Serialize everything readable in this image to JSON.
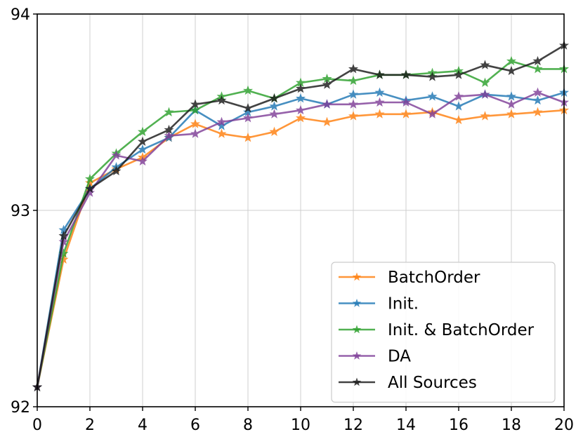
{
  "chart_data": {
    "type": "line",
    "title": "",
    "xlabel": "",
    "ylabel": "",
    "xlim": [
      0,
      20
    ],
    "ylim": [
      92,
      94
    ],
    "xticks": [
      "0",
      "2",
      "4",
      "6",
      "8",
      "10",
      "12",
      "14",
      "16",
      "18",
      "20"
    ],
    "yticks": [
      "92",
      "93",
      "94"
    ],
    "grid": true,
    "legend_position": "lower-right",
    "x": [
      0,
      1,
      2,
      3,
      4,
      5,
      6,
      7,
      8,
      9,
      10,
      11,
      12,
      13,
      14,
      15,
      16,
      17,
      18,
      19,
      20
    ],
    "series": [
      {
        "name": "BatchOrder",
        "color": "#ff7f0e",
        "marker": "star",
        "values": [
          92.1,
          92.75,
          93.14,
          93.21,
          93.27,
          93.37,
          93.44,
          93.39,
          93.37,
          93.4,
          93.47,
          93.45,
          93.48,
          93.49,
          93.49,
          93.5,
          93.46,
          93.48,
          93.49,
          93.5,
          93.51
        ]
      },
      {
        "name": "Init.",
        "color": "#1f77b4",
        "marker": "star",
        "values": [
          92.1,
          92.9,
          93.11,
          93.22,
          93.31,
          93.37,
          93.51,
          93.43,
          93.5,
          93.53,
          93.57,
          93.54,
          93.59,
          93.6,
          93.56,
          93.58,
          93.53,
          93.59,
          93.58,
          93.56,
          93.6
        ]
      },
      {
        "name": "Init. & BatchOrder",
        "color": "#2ca02c",
        "marker": "star",
        "values": [
          92.1,
          92.78,
          93.16,
          93.29,
          93.4,
          93.5,
          93.51,
          93.58,
          93.61,
          93.57,
          93.65,
          93.67,
          93.66,
          93.69,
          93.69,
          93.7,
          93.71,
          93.65,
          93.76,
          93.72,
          93.72
        ]
      },
      {
        "name": "DA",
        "color": "#7f3f98",
        "marker": "star",
        "values": [
          92.1,
          92.84,
          93.09,
          93.28,
          93.25,
          93.38,
          93.39,
          93.45,
          93.47,
          93.49,
          93.51,
          93.54,
          93.54,
          93.55,
          93.55,
          93.49,
          93.58,
          93.59,
          93.54,
          93.6,
          93.55
        ]
      },
      {
        "name": "All Sources",
        "color": "#1a1a1a",
        "marker": "star",
        "values": [
          92.1,
          92.87,
          93.11,
          93.2,
          93.35,
          93.41,
          93.54,
          93.56,
          93.52,
          93.57,
          93.62,
          93.64,
          93.72,
          93.69,
          93.69,
          93.68,
          93.69,
          93.74,
          93.71,
          93.76,
          93.84
        ]
      }
    ]
  }
}
